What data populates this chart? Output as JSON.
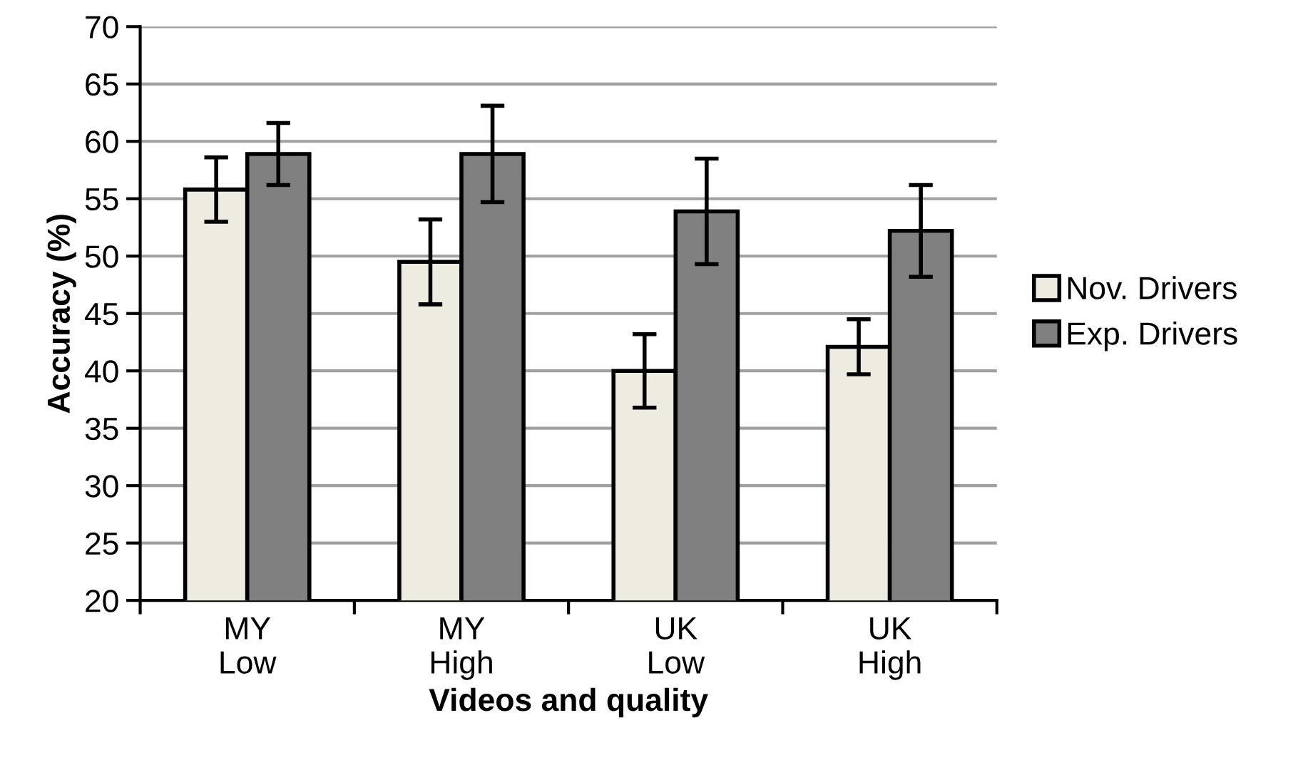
{
  "chart_data": {
    "type": "bar",
    "xlabel": "Videos and quality",
    "ylabel": "Accuracy (%)",
    "categories": [
      "MY\nLow",
      "MY\nHigh",
      "UK\nLow",
      "UK\nHigh"
    ],
    "series": [
      {
        "name": "Nov. Drivers",
        "color": "#eeebe0",
        "values": [
          55.8,
          49.5,
          40.0,
          42.1
        ],
        "errors": [
          2.8,
          3.7,
          3.2,
          2.4
        ]
      },
      {
        "name": "Exp. Drivers",
        "color": "#808080",
        "values": [
          58.9,
          58.9,
          53.9,
          52.2
        ],
        "errors": [
          2.7,
          4.2,
          4.6,
          4.0
        ]
      }
    ],
    "ylim": [
      20,
      70
    ],
    "yticks": [
      20,
      25,
      30,
      35,
      40,
      45,
      50,
      55,
      60,
      65,
      70
    ],
    "grid": "y",
    "legend": "right"
  }
}
